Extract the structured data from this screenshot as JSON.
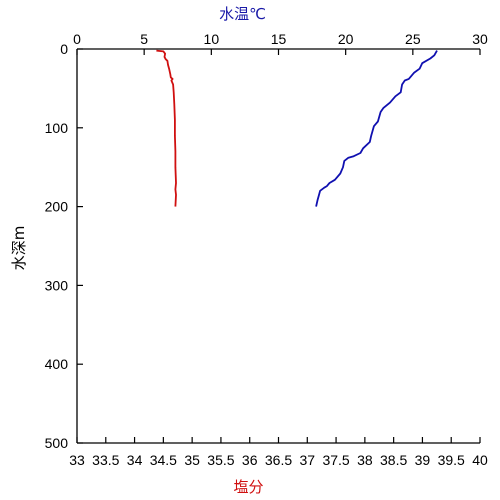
{
  "chart_data": {
    "type": "line",
    "title": "",
    "top_axis": {
      "label": "水温℃",
      "color": "#1a1aa8",
      "range": [
        0,
        30
      ],
      "ticks": [
        "0",
        "5",
        "10",
        "15",
        "20",
        "25",
        "30"
      ],
      "tick_values": [
        0,
        5,
        10,
        15,
        20,
        25,
        30
      ]
    },
    "bottom_axis": {
      "label": "塩分",
      "color": "#d01010",
      "range": [
        33,
        40
      ],
      "ticks": [
        "33",
        "33.5",
        "34",
        "34.5",
        "35",
        "35.5",
        "36",
        "36.5",
        "37",
        "37.5",
        "38",
        "38.5",
        "39",
        "39.5",
        "40"
      ],
      "tick_values": [
        33,
        33.5,
        34,
        34.5,
        35,
        35.5,
        36,
        36.5,
        37,
        37.5,
        38,
        38.5,
        39,
        39.5,
        40
      ]
    },
    "y_axis": {
      "label": "水深m",
      "range": [
        0,
        500
      ],
      "inverted": true,
      "ticks": [
        "0",
        "100",
        "200",
        "300",
        "400",
        "500"
      ],
      "tick_values": [
        0,
        100,
        200,
        300,
        400,
        500
      ]
    },
    "grid": false,
    "legend": "none",
    "series": [
      {
        "axis": "bottom",
        "color": "#d01010",
        "points": [
          [
            34.38,
            2
          ],
          [
            34.5,
            3
          ],
          [
            34.53,
            6
          ],
          [
            34.52,
            10
          ],
          [
            34.54,
            13
          ],
          [
            34.57,
            15
          ],
          [
            34.58,
            20
          ],
          [
            34.6,
            25
          ],
          [
            34.62,
            32
          ],
          [
            34.63,
            36
          ],
          [
            34.66,
            38
          ],
          [
            34.64,
            40
          ],
          [
            34.67,
            45
          ],
          [
            34.68,
            55
          ],
          [
            34.69,
            70
          ],
          [
            34.7,
            90
          ],
          [
            34.7,
            110
          ],
          [
            34.71,
            130
          ],
          [
            34.71,
            150
          ],
          [
            34.72,
            170
          ],
          [
            34.71,
            178
          ],
          [
            34.72,
            185
          ],
          [
            34.71,
            200
          ]
        ]
      },
      {
        "axis": "top",
        "color": "#1010b0",
        "points": [
          [
            26.8,
            2
          ],
          [
            26.6,
            8
          ],
          [
            26.3,
            12
          ],
          [
            25.7,
            18
          ],
          [
            25.5,
            25
          ],
          [
            25.1,
            30
          ],
          [
            24.7,
            38
          ],
          [
            24.4,
            40
          ],
          [
            24.2,
            45
          ],
          [
            24.1,
            55
          ],
          [
            23.7,
            60
          ],
          [
            23.3,
            68
          ],
          [
            22.8,
            75
          ],
          [
            22.6,
            80
          ],
          [
            22.4,
            92
          ],
          [
            22.1,
            98
          ],
          [
            21.9,
            110
          ],
          [
            21.8,
            118
          ],
          [
            21.3,
            126
          ],
          [
            21.1,
            132
          ],
          [
            20.6,
            136
          ],
          [
            20.2,
            138
          ],
          [
            19.9,
            142
          ],
          [
            19.8,
            150
          ],
          [
            19.6,
            158
          ],
          [
            19.2,
            166
          ],
          [
            18.8,
            170
          ],
          [
            18.6,
            174
          ],
          [
            18.4,
            176
          ],
          [
            18.1,
            180
          ],
          [
            18.0,
            186
          ],
          [
            17.9,
            192
          ],
          [
            17.8,
            200
          ]
        ]
      }
    ]
  }
}
